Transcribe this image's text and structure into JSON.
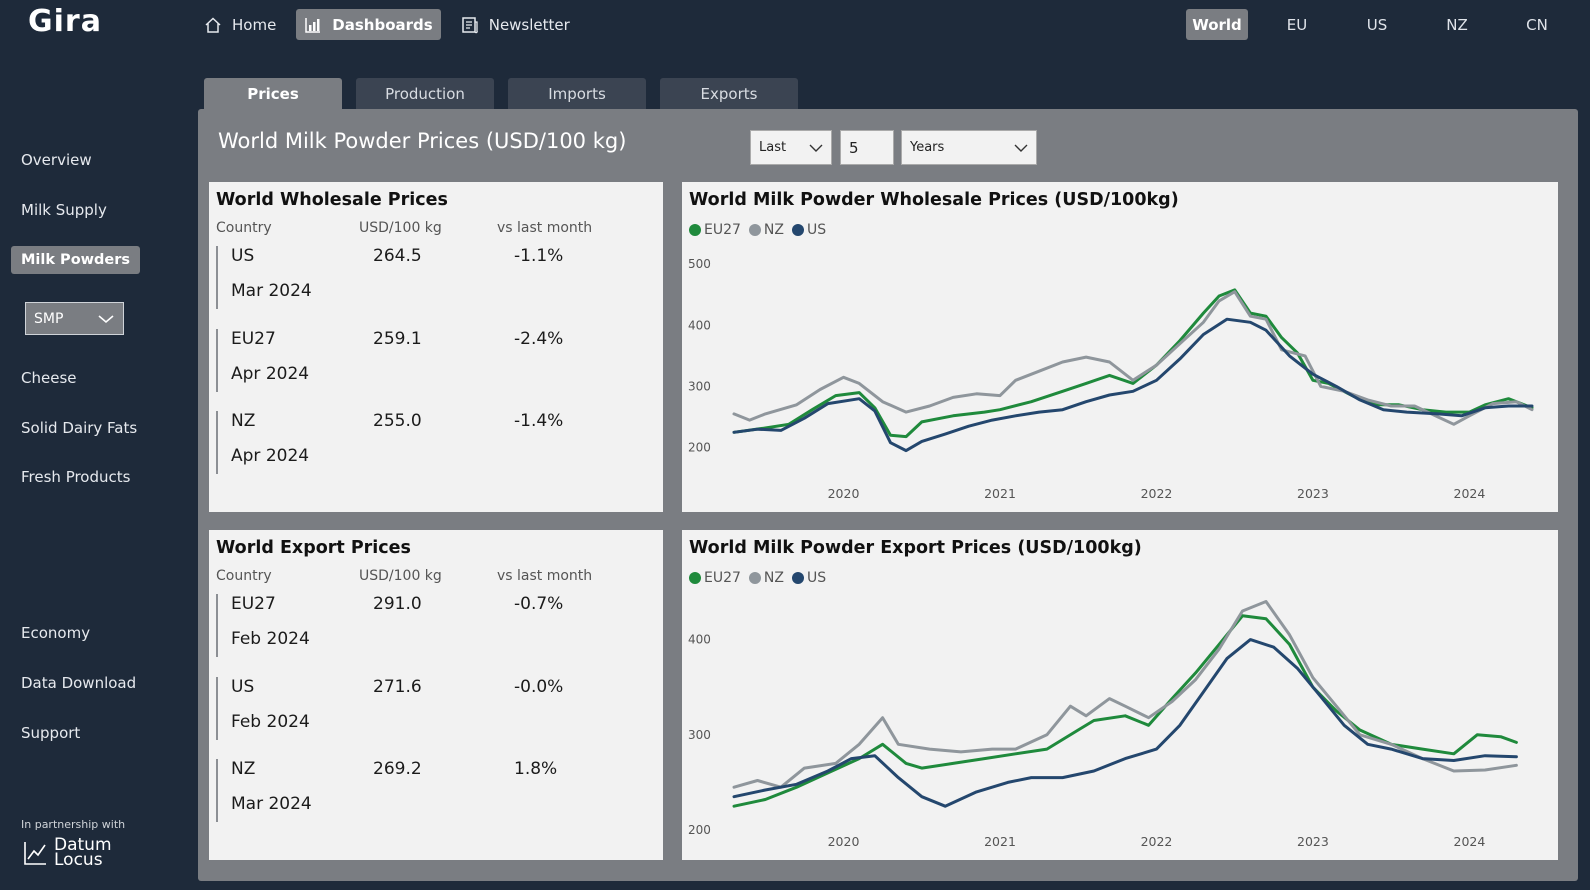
{
  "app": {
    "logo": "Gira"
  },
  "topnav": [
    {
      "label": "Home",
      "icon": "home-icon",
      "active": false
    },
    {
      "label": "Dashboards",
      "icon": "bar-chart-icon",
      "active": true
    },
    {
      "label": "Newsletter",
      "icon": "newsletter-icon",
      "active": false
    }
  ],
  "regions": [
    {
      "label": "World",
      "active": true
    },
    {
      "label": "EU",
      "active": false
    },
    {
      "label": "US",
      "active": false
    },
    {
      "label": "NZ",
      "active": false
    },
    {
      "label": "CN",
      "active": false
    }
  ],
  "sidebar": {
    "items": [
      "Overview",
      "Milk Supply",
      "Milk Powders",
      "Cheese",
      "Solid Dairy Fats",
      "Fresh Products",
      "Economy",
      "Data Download",
      "Support"
    ],
    "active": "Milk Powders",
    "product_select": "SMP",
    "partner_text": "In partnership with",
    "partner_name_1": "Datum",
    "partner_name_2": "Locus"
  },
  "tabs": [
    {
      "label": "Prices",
      "active": true
    },
    {
      "label": "Production",
      "active": false
    },
    {
      "label": "Imports",
      "active": false
    },
    {
      "label": "Exports",
      "active": false
    }
  ],
  "main": {
    "title": "World Milk Powder Prices (USD/100 kg)",
    "filter_mode": "Last",
    "filter_count": "5",
    "filter_unit": "Years"
  },
  "colors": {
    "EU27": "#1f8a3c",
    "NZ": "#8f969c",
    "US": "#24476e",
    "panel": "#7a7d82",
    "background": "#1e2a3a"
  },
  "wholesale_table": {
    "title": "World Wholesale Prices",
    "headers": [
      "Country",
      "USD/100 kg",
      "vs last month"
    ],
    "rows": [
      {
        "country": "US",
        "price": "264.5",
        "change": "-1.1%",
        "date": "Mar 2024"
      },
      {
        "country": "EU27",
        "price": "259.1",
        "change": "-2.4%",
        "date": "Apr 2024"
      },
      {
        "country": "NZ",
        "price": "255.0",
        "change": "-1.4%",
        "date": "Apr 2024"
      }
    ]
  },
  "export_table": {
    "title": "World Export Prices",
    "headers": [
      "Country",
      "USD/100 kg",
      "vs last month"
    ],
    "rows": [
      {
        "country": "EU27",
        "price": "291.0",
        "change": "-0.7%",
        "date": "Feb 2024"
      },
      {
        "country": "US",
        "price": "271.6",
        "change": "-0.0%",
        "date": "Feb 2024"
      },
      {
        "country": "NZ",
        "price": "269.2",
        "change": "1.8%",
        "date": "Mar 2024"
      }
    ]
  },
  "chart_data": [
    {
      "type": "line",
      "title": "World Milk Powder Wholesale Prices (USD/100kg)",
      "xlim": [
        2019.3,
        2024.4
      ],
      "ylim": [
        160,
        520
      ],
      "yticks": [
        200,
        300,
        400,
        500
      ],
      "xticks": [
        2020,
        2021,
        2022,
        2023,
        2024
      ],
      "legend": "top-left",
      "series": [
        {
          "name": "EU27",
          "color": "#1f8a3c",
          "points": [
            [
              2019.3,
              225
            ],
            [
              2019.5,
              232
            ],
            [
              2019.65,
              238
            ],
            [
              2019.8,
              262
            ],
            [
              2019.95,
              285
            ],
            [
              2020.1,
              290
            ],
            [
              2020.2,
              265
            ],
            [
              2020.3,
              220
            ],
            [
              2020.4,
              218
            ],
            [
              2020.5,
              242
            ],
            [
              2020.7,
              252
            ],
            [
              2020.9,
              258
            ],
            [
              2021.0,
              262
            ],
            [
              2021.2,
              275
            ],
            [
              2021.4,
              292
            ],
            [
              2021.55,
              305
            ],
            [
              2021.7,
              318
            ],
            [
              2021.85,
              305
            ],
            [
              2022.0,
              335
            ],
            [
              2022.15,
              375
            ],
            [
              2022.3,
              420
            ],
            [
              2022.4,
              448
            ],
            [
              2022.5,
              458
            ],
            [
              2022.6,
              420
            ],
            [
              2022.7,
              415
            ],
            [
              2022.8,
              380
            ],
            [
              2022.9,
              355
            ],
            [
              2023.0,
              310
            ],
            [
              2023.1,
              305
            ],
            [
              2023.25,
              285
            ],
            [
              2023.4,
              270
            ],
            [
              2023.55,
              270
            ],
            [
              2023.7,
              262
            ],
            [
              2023.85,
              258
            ],
            [
              2024.0,
              258
            ],
            [
              2024.1,
              270
            ],
            [
              2024.25,
              280
            ],
            [
              2024.4,
              265
            ]
          ]
        },
        {
          "name": "NZ",
          "color": "#8f969c",
          "points": [
            [
              2019.3,
              255
            ],
            [
              2019.4,
              245
            ],
            [
              2019.5,
              255
            ],
            [
              2019.7,
              270
            ],
            [
              2019.85,
              295
            ],
            [
              2020.0,
              315
            ],
            [
              2020.1,
              305
            ],
            [
              2020.25,
              275
            ],
            [
              2020.4,
              258
            ],
            [
              2020.55,
              268
            ],
            [
              2020.7,
              282
            ],
            [
              2020.85,
              288
            ],
            [
              2021.0,
              285
            ],
            [
              2021.1,
              310
            ],
            [
              2021.25,
              325
            ],
            [
              2021.4,
              340
            ],
            [
              2021.55,
              348
            ],
            [
              2021.7,
              340
            ],
            [
              2021.85,
              310
            ],
            [
              2022.0,
              335
            ],
            [
              2022.15,
              370
            ],
            [
              2022.3,
              405
            ],
            [
              2022.4,
              440
            ],
            [
              2022.5,
              455
            ],
            [
              2022.6,
              415
            ],
            [
              2022.7,
              410
            ],
            [
              2022.8,
              360
            ],
            [
              2022.95,
              350
            ],
            [
              2023.05,
              300
            ],
            [
              2023.2,
              292
            ],
            [
              2023.35,
              278
            ],
            [
              2023.5,
              268
            ],
            [
              2023.65,
              268
            ],
            [
              2023.8,
              250
            ],
            [
              2023.9,
              238
            ],
            [
              2024.0,
              252
            ],
            [
              2024.15,
              272
            ],
            [
              2024.3,
              275
            ],
            [
              2024.4,
              262
            ]
          ]
        },
        {
          "name": "US",
          "color": "#24476e",
          "points": [
            [
              2019.3,
              225
            ],
            [
              2019.45,
              230
            ],
            [
              2019.6,
              228
            ],
            [
              2019.75,
              248
            ],
            [
              2019.9,
              272
            ],
            [
              2020.1,
              280
            ],
            [
              2020.2,
              260
            ],
            [
              2020.3,
              208
            ],
            [
              2020.4,
              195
            ],
            [
              2020.5,
              210
            ],
            [
              2020.65,
              222
            ],
            [
              2020.8,
              235
            ],
            [
              2020.95,
              245
            ],
            [
              2021.1,
              252
            ],
            [
              2021.25,
              258
            ],
            [
              2021.4,
              262
            ],
            [
              2021.55,
              275
            ],
            [
              2021.7,
              286
            ],
            [
              2021.85,
              292
            ],
            [
              2022.0,
              310
            ],
            [
              2022.15,
              345
            ],
            [
              2022.3,
              385
            ],
            [
              2022.45,
              410
            ],
            [
              2022.6,
              405
            ],
            [
              2022.7,
              392
            ],
            [
              2022.85,
              350
            ],
            [
              2023.0,
              320
            ],
            [
              2023.15,
              300
            ],
            [
              2023.3,
              278
            ],
            [
              2023.45,
              262
            ],
            [
              2023.6,
              258
            ],
            [
              2023.8,
              255
            ],
            [
              2023.95,
              252
            ],
            [
              2024.1,
              265
            ],
            [
              2024.25,
              268
            ],
            [
              2024.4,
              268
            ]
          ]
        }
      ]
    },
    {
      "type": "line",
      "title": "World Milk Powder Export Prices (USD/100kg)",
      "xlim": [
        2019.3,
        2024.4
      ],
      "ylim": [
        200,
        450
      ],
      "yticks": [
        200,
        300,
        400
      ],
      "xticks": [
        2020,
        2021,
        2022,
        2023,
        2024
      ],
      "legend": "top-left",
      "series": [
        {
          "name": "EU27",
          "color": "#1f8a3c",
          "points": [
            [
              2019.3,
              225
            ],
            [
              2019.5,
              232
            ],
            [
              2019.7,
              245
            ],
            [
              2019.9,
              260
            ],
            [
              2020.1,
              275
            ],
            [
              2020.25,
              290
            ],
            [
              2020.4,
              270
            ],
            [
              2020.5,
              265
            ],
            [
              2020.7,
              270
            ],
            [
              2020.9,
              275
            ],
            [
              2021.1,
              280
            ],
            [
              2021.3,
              285
            ],
            [
              2021.5,
              305
            ],
            [
              2021.6,
              315
            ],
            [
              2021.8,
              320
            ],
            [
              2021.95,
              310
            ],
            [
              2022.1,
              338
            ],
            [
              2022.25,
              365
            ],
            [
              2022.4,
              395
            ],
            [
              2022.55,
              425
            ],
            [
              2022.7,
              422
            ],
            [
              2022.85,
              395
            ],
            [
              2023.0,
              350
            ],
            [
              2023.15,
              325
            ],
            [
              2023.3,
              305
            ],
            [
              2023.5,
              290
            ],
            [
              2023.7,
              285
            ],
            [
              2023.9,
              280
            ],
            [
              2024.05,
              300
            ],
            [
              2024.2,
              298
            ],
            [
              2024.3,
              292
            ]
          ]
        },
        {
          "name": "NZ",
          "color": "#8f969c",
          "points": [
            [
              2019.3,
              245
            ],
            [
              2019.45,
              252
            ],
            [
              2019.6,
              245
            ],
            [
              2019.75,
              265
            ],
            [
              2019.95,
              270
            ],
            [
              2020.1,
              290
            ],
            [
              2020.25,
              318
            ],
            [
              2020.35,
              290
            ],
            [
              2020.55,
              285
            ],
            [
              2020.75,
              282
            ],
            [
              2020.95,
              285
            ],
            [
              2021.1,
              285
            ],
            [
              2021.3,
              300
            ],
            [
              2021.45,
              330
            ],
            [
              2021.55,
              320
            ],
            [
              2021.7,
              338
            ],
            [
              2021.8,
              330
            ],
            [
              2021.95,
              318
            ],
            [
              2022.1,
              335
            ],
            [
              2022.25,
              358
            ],
            [
              2022.4,
              390
            ],
            [
              2022.55,
              430
            ],
            [
              2022.7,
              440
            ],
            [
              2022.85,
              405
            ],
            [
              2023.0,
              360
            ],
            [
              2023.15,
              330
            ],
            [
              2023.3,
              300
            ],
            [
              2023.5,
              290
            ],
            [
              2023.7,
              275
            ],
            [
              2023.9,
              262
            ],
            [
              2024.1,
              263
            ],
            [
              2024.3,
              268
            ]
          ]
        },
        {
          "name": "US",
          "color": "#24476e",
          "points": [
            [
              2019.3,
              235
            ],
            [
              2019.5,
              242
            ],
            [
              2019.7,
              248
            ],
            [
              2019.9,
              262
            ],
            [
              2020.05,
              275
            ],
            [
              2020.2,
              278
            ],
            [
              2020.35,
              255
            ],
            [
              2020.5,
              235
            ],
            [
              2020.65,
              225
            ],
            [
              2020.85,
              240
            ],
            [
              2021.05,
              250
            ],
            [
              2021.2,
              255
            ],
            [
              2021.4,
              255
            ],
            [
              2021.6,
              262
            ],
            [
              2021.8,
              275
            ],
            [
              2022.0,
              285
            ],
            [
              2022.15,
              310
            ],
            [
              2022.3,
              345
            ],
            [
              2022.45,
              380
            ],
            [
              2022.6,
              400
            ],
            [
              2022.75,
              392
            ],
            [
              2022.9,
              370
            ],
            [
              2023.05,
              340
            ],
            [
              2023.2,
              310
            ],
            [
              2023.35,
              290
            ],
            [
              2023.5,
              285
            ],
            [
              2023.7,
              275
            ],
            [
              2023.9,
              273
            ],
            [
              2024.1,
              278
            ],
            [
              2024.3,
              277
            ]
          ]
        }
      ]
    }
  ]
}
